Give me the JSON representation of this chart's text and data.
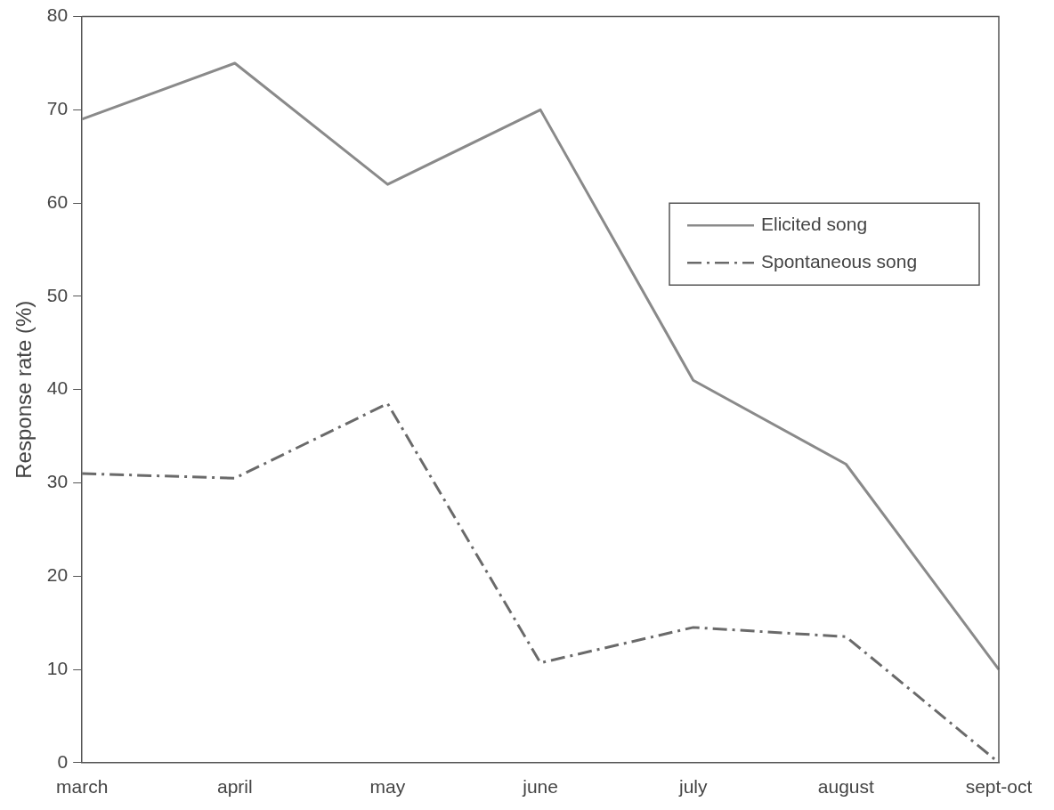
{
  "chart_data": {
    "type": "line",
    "xlabel": null,
    "ylabel": "Response rate (%)",
    "categories": [
      "march",
      "april",
      "may",
      "june",
      "july",
      "august",
      "sept-oct"
    ],
    "series": [
      {
        "name": "Elicited song",
        "color": "#8a8a8a",
        "line_style": "solid",
        "values": [
          69,
          75,
          62,
          70,
          41,
          32,
          10
        ]
      },
      {
        "name": "Spontaneous song",
        "color": "#6a6a6a",
        "line_style": "dashed",
        "values": [
          31,
          30.5,
          38.5,
          10.7,
          14.5,
          13.5,
          0
        ]
      }
    ],
    "ylim": [
      0,
      80
    ],
    "yticks": [
      0,
      10,
      20,
      30,
      40,
      50,
      60,
      70,
      80
    ],
    "grid": false,
    "legend": "right",
    "marker": "none"
  }
}
